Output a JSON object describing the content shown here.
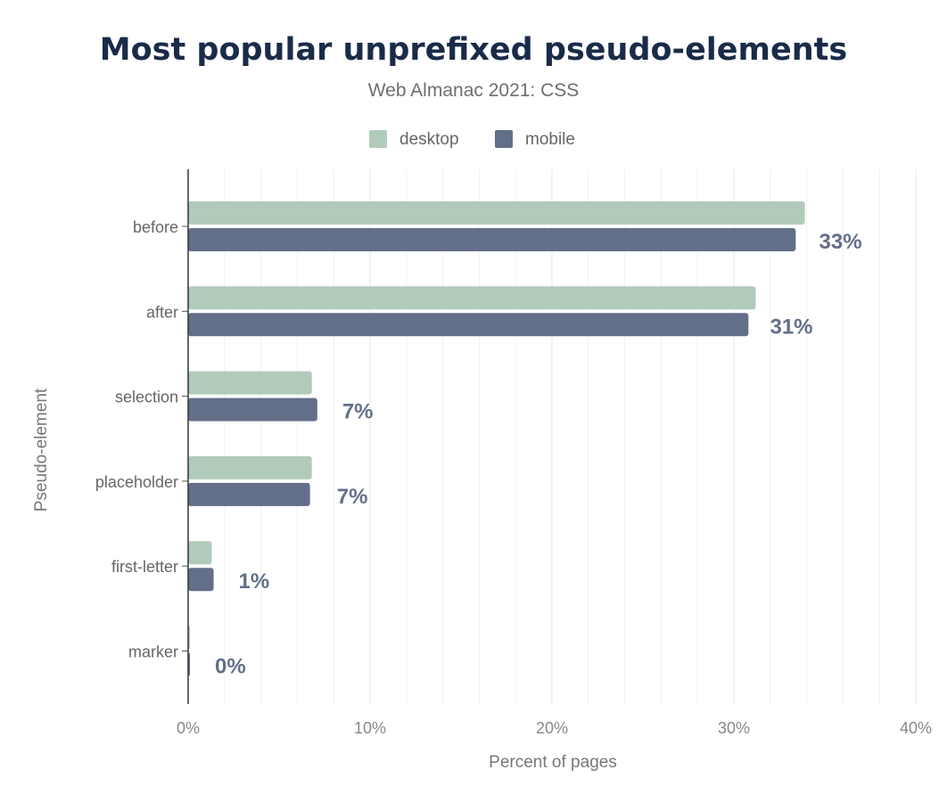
{
  "chart_data": {
    "type": "bar",
    "orientation": "horizontal",
    "title": "Most popular unprefixed pseudo-elements",
    "subtitle": "Web Almanac 2021: CSS",
    "xlabel": "Percent of pages",
    "ylabel": "Pseudo-element",
    "categories": [
      "before",
      "after",
      "selection",
      "placeholder",
      "first-letter",
      "marker"
    ],
    "series": [
      {
        "name": "desktop",
        "color": "#b1cbbb",
        "values": [
          33.9,
          31.2,
          6.8,
          6.8,
          1.3,
          0.1
        ]
      },
      {
        "name": "mobile",
        "color": "#636f89",
        "values": [
          33.4,
          30.8,
          7.1,
          6.7,
          1.4,
          0.1
        ]
      }
    ],
    "data_labels": [
      "33%",
      "31%",
      "7%",
      "7%",
      "1%",
      "0%"
    ],
    "xlim": [
      0,
      40
    ],
    "xticks": [
      "0%",
      "10%",
      "20%",
      "30%",
      "40%"
    ],
    "legend_position": "top-center",
    "grid": true
  }
}
